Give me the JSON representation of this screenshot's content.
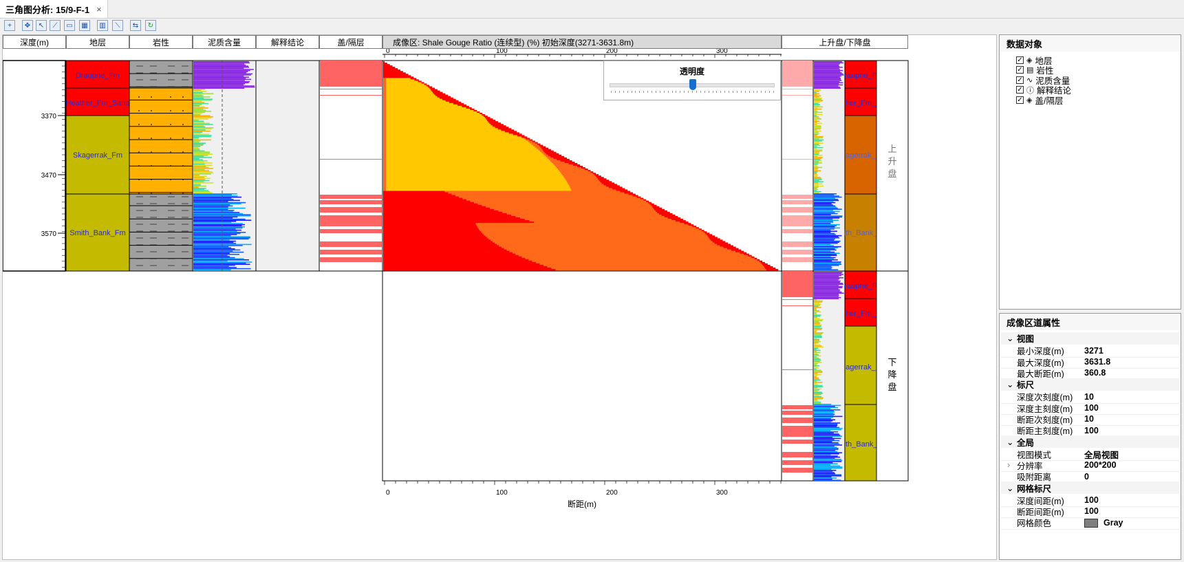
{
  "tab": {
    "title": "三角图分析: 15/9-F-1",
    "close": "×"
  },
  "toolbar": {
    "icons": [
      "zoom-in-icon",
      "pan-icon",
      "select-icon",
      "measure-icon",
      "export-icon",
      "table-icon",
      "grid-icon",
      "ruler-icon",
      "swap-icon",
      "refresh-icon"
    ]
  },
  "track_headers": {
    "depth": "深度(m)",
    "formation": "地层",
    "lithology": "岩性",
    "shale_content": "泥质含量",
    "interpretation": "解释结论",
    "cap": "盖/隔层",
    "imaging": "成像区: Shale Gouge Ratio (连续型) (%)  初始深度(3271-3631.8m)",
    "throw_side": "上升盘/下降盘"
  },
  "depth_ticks": [
    "3370",
    "3470",
    "3570"
  ],
  "formations": [
    "Draupne_Fm",
    "Heather_Fm_Sand",
    "Skagerrak_Fm",
    "Smith_Bank_Fm"
  ],
  "formations_right_upper": [
    "raupne_F",
    "her_Fm_",
    "agerrak_",
    "ith_Bank_"
  ],
  "formations_right_lower": [
    "raupne_F",
    "her_Fm_",
    "agerrak_",
    "ith_Bank_"
  ],
  "side_labels": {
    "upper": "上升盘",
    "lower": "下降盘"
  },
  "throw_axis": {
    "ticks": [
      "0",
      "100",
      "200",
      "300"
    ],
    "label": "断距(m)"
  },
  "transparency": {
    "label": "透明度",
    "value": 0.5
  },
  "data_objects": {
    "title": "数据对象",
    "items": [
      {
        "label": "地层",
        "icon": "layers-icon"
      },
      {
        "label": "岩性",
        "icon": "lithology-icon"
      },
      {
        "label": "泥质含量",
        "icon": "curve-icon"
      },
      {
        "label": "解释结论",
        "icon": "info-icon"
      },
      {
        "label": "盖/隔层",
        "icon": "layers-icon"
      }
    ]
  },
  "properties": {
    "title": "成像区道属性",
    "groups": [
      {
        "name": "视图",
        "rows": [
          {
            "k": "最小深度(m)",
            "v": "3271"
          },
          {
            "k": "最大深度(m)",
            "v": "3631.8"
          },
          {
            "k": "最大断距(m)",
            "v": "360.8"
          }
        ]
      },
      {
        "name": "标尺",
        "rows": [
          {
            "k": "深度次刻度(m)",
            "v": "10"
          },
          {
            "k": "深度主刻度(m)",
            "v": "100"
          },
          {
            "k": "断距次刻度(m)",
            "v": "10"
          },
          {
            "k": "断距主刻度(m)",
            "v": "100"
          }
        ]
      },
      {
        "name": "全局",
        "rows": [
          {
            "k": "视图模式",
            "v": "全局视图"
          },
          {
            "k": "分辨率",
            "v": "200*200",
            "expand": "›"
          },
          {
            "k": "吸附距离",
            "v": "0"
          }
        ]
      },
      {
        "name": "网格标尺",
        "rows": [
          {
            "k": "深度间距(m)",
            "v": "100"
          },
          {
            "k": "断距间距(m)",
            "v": "100"
          },
          {
            "k": "网格颜色",
            "v": "Gray",
            "swatch": "#7f7f7f"
          }
        ]
      }
    ]
  },
  "colors": {
    "red": "#ff0000",
    "orange": "#ff6a1a",
    "yellow": "#ffc800",
    "olive": "#c4bb00",
    "sand": "#ffb000",
    "cap": "#ff6464",
    "purple": "#8a2be2"
  }
}
